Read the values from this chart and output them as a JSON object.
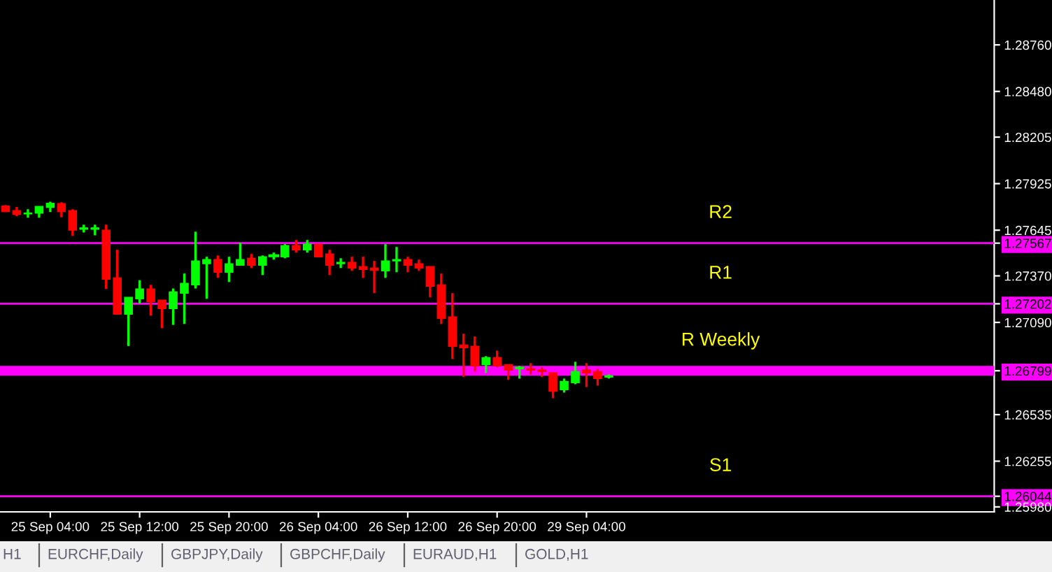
{
  "chart_data": {
    "type": "candlestick",
    "categories": [
      null,
      null,
      null,
      null,
      "25 Sep 04:00",
      null,
      null,
      null,
      null,
      null,
      null,
      null,
      "25 Sep 12:00",
      null,
      null,
      null,
      null,
      null,
      null,
      null,
      "25 Sep 20:00",
      null,
      null,
      null,
      null,
      null,
      null,
      null,
      "26 Sep 04:00",
      null,
      null,
      null,
      null,
      null,
      null,
      null,
      "26 Sep 12:00",
      null,
      null,
      null,
      null,
      null,
      null,
      null,
      "26 Sep 20:00",
      null,
      null,
      null,
      null,
      null,
      null,
      null,
      "29 Sep 04:00",
      null,
      null,
      null,
      null,
      null,
      null,
      null,
      null,
      null,
      null,
      null,
      null,
      null,
      null,
      null,
      null,
      null,
      null,
      null,
      null,
      null,
      null,
      null,
      null,
      null,
      null,
      null,
      null,
      null,
      null,
      null,
      null,
      null,
      null,
      null,
      null
    ],
    "ohlc": [
      [
        1.2779,
        1.27796,
        1.27754,
        1.27757
      ],
      [
        1.27763,
        1.27785,
        1.27729,
        1.2774
      ],
      [
        1.27743,
        1.27771,
        1.2772,
        1.27748
      ],
      [
        1.27748,
        1.27788,
        1.2772,
        1.27788
      ],
      [
        1.27782,
        1.27816,
        1.27754,
        1.27807
      ],
      [
        1.27805,
        1.27813,
        1.27723,
        1.27757
      ],
      [
        1.27763,
        1.27771,
        1.27611,
        1.27645
      ],
      [
        1.27651,
        1.27678,
        1.27631,
        1.27659
      ],
      [
        1.27651,
        1.27678,
        1.27614,
        1.27659
      ],
      [
        1.27645,
        1.27678,
        1.27291,
        1.2735
      ],
      [
        1.27358,
        1.27527,
        1.27139,
        1.27139
      ],
      [
        1.27139,
        1.27241,
        1.26948,
        1.27241
      ],
      [
        1.27232,
        1.27344,
        1.27204,
        1.27291
      ],
      [
        1.27291,
        1.27316,
        1.27131,
        1.27215
      ],
      [
        1.27224,
        1.27224,
        1.27055,
        1.27173
      ],
      [
        1.27173,
        1.27294,
        1.27075,
        1.27274
      ],
      [
        1.27266,
        1.27384,
        1.27081,
        1.27325
      ],
      [
        1.27316,
        1.27636,
        1.27294,
        1.2746
      ],
      [
        1.27443,
        1.27485,
        1.27232,
        1.27468
      ],
      [
        1.27468,
        1.27493,
        1.27358,
        1.27392
      ],
      [
        1.27392,
        1.27485,
        1.27333,
        1.27443
      ],
      [
        1.27434,
        1.27569,
        1.27434,
        1.27468
      ],
      [
        1.27476,
        1.27502,
        1.27417,
        1.27434
      ],
      [
        1.27434,
        1.27493,
        1.27375,
        1.27485
      ],
      [
        1.27491,
        1.2751,
        1.27468,
        1.27493
      ],
      [
        1.27485,
        1.27561,
        1.27476,
        1.27552
      ],
      [
        1.27552,
        1.27586,
        1.2751,
        1.27527
      ],
      [
        1.27527,
        1.27586,
        1.2751,
        1.27561
      ],
      [
        1.27561,
        1.27561,
        1.27485,
        1.27485
      ],
      [
        1.27502,
        1.27527,
        1.27375,
        1.27434
      ],
      [
        1.27443,
        1.27476,
        1.27417,
        1.27451
      ],
      [
        1.27451,
        1.27485,
        1.274,
        1.27417
      ],
      [
        1.27426,
        1.27485,
        1.27358,
        1.27409
      ],
      [
        1.27417,
        1.2746,
        1.27266,
        1.27403
      ],
      [
        1.274,
        1.27561,
        1.27358,
        1.2746
      ],
      [
        1.2746,
        1.27544,
        1.27392,
        1.27468
      ],
      [
        1.27468,
        1.27485,
        1.27392,
        1.27434
      ],
      [
        1.27443,
        1.27468,
        1.274,
        1.27417
      ],
      [
        1.27426,
        1.27426,
        1.27241,
        1.27308
      ],
      [
        1.27316,
        1.27384,
        1.27081,
        1.27114
      ],
      [
        1.27123,
        1.27266,
        1.2687,
        1.26946
      ],
      [
        1.26954,
        1.27022,
        1.26761,
        1.26937
      ],
      [
        1.26946,
        1.27005,
        1.26794,
        1.26828
      ],
      [
        1.26836,
        1.26887,
        1.26786,
        1.26878
      ],
      [
        1.26878,
        1.2692,
        1.2682,
        1.26828
      ],
      [
        1.26836,
        1.26836,
        1.26744,
        1.26803
      ],
      [
        1.26811,
        1.26828,
        1.26752,
        1.2682
      ],
      [
        1.26811,
        1.26845,
        1.26777,
        1.26803
      ],
      [
        1.26803,
        1.2682,
        1.26761,
        1.26794
      ],
      [
        1.26786,
        1.26786,
        1.26634,
        1.26676
      ],
      [
        1.26685,
        1.26752,
        1.26668,
        1.26735
      ],
      [
        1.26727,
        1.26853,
        1.26718,
        1.26794
      ],
      [
        1.26803,
        1.26845,
        1.26701,
        1.26786
      ],
      [
        1.26794,
        1.26811,
        1.2671,
        1.26752
      ],
      [
        1.26761,
        1.26777,
        1.26752,
        1.26769
      ],
      null,
      null,
      null,
      null,
      null,
      null,
      null,
      null,
      null,
      null,
      null,
      null,
      null,
      null,
      null,
      null,
      null,
      null,
      null,
      null,
      null,
      null,
      null,
      null,
      null,
      null,
      null,
      null,
      null,
      null,
      null,
      null,
      null,
      null
    ],
    "colors": [
      "#ff0000",
      "#ff0000",
      "#00ff00",
      "#00ff00",
      "#00ff00",
      "#ff0000",
      "#ff0000",
      "#00ff00",
      "#00ff00",
      "#ff0000",
      "#ff0000",
      "#00ff00",
      "#00ff00",
      "#ff0000",
      "#ff0000",
      "#00ff00",
      "#00ff00",
      "#00ff00",
      "#00ff00",
      "#ff0000",
      "#00ff00",
      "#00ff00",
      "#ff0000",
      "#00ff00",
      "#00ff00",
      "#00ff00",
      "#ff0000",
      "#00ff00",
      "#ff0000",
      "#ff0000",
      "#00ff00",
      "#ff0000",
      "#ff0000",
      "#ff0000",
      "#00ff00",
      "#00ff00",
      "#ff0000",
      "#ff0000",
      "#ff0000",
      "#ff0000",
      "#ff0000",
      "#ff0000",
      "#ff0000",
      "#00ff00",
      "#ff0000",
      "#ff0000",
      "#00ff00",
      "#ff0000",
      "#ff0000",
      "#ff0000",
      "#00ff00",
      "#00ff00",
      "#ff0000",
      "#ff0000",
      "#00ff00",
      null,
      null,
      null,
      null,
      null,
      null,
      null,
      null,
      null,
      null,
      null,
      null,
      null,
      null,
      null,
      null,
      null,
      null,
      null,
      null,
      null,
      null,
      null,
      null,
      null,
      null,
      null,
      null,
      null,
      null,
      null,
      null,
      null,
      null
    ],
    "ylim": [
      1.2595,
      1.2903
    ],
    "yticks": [
      {
        "value": 1.2876,
        "label": "1.28760"
      },
      {
        "value": 1.2848,
        "label": "1.28480"
      },
      {
        "value": 1.28205,
        "label": "1.28205"
      },
      {
        "value": 1.27925,
        "label": "1.27925"
      },
      {
        "value": 1.27645,
        "label": "1.27645"
      },
      {
        "value": 1.27567,
        "label": "1.27567"
      },
      {
        "value": 1.2737,
        "label": "1.27370"
      },
      {
        "value": 1.27202,
        "label": "1.27202"
      },
      {
        "value": 1.2709,
        "label": "1.27090"
      },
      {
        "value": 1.26799,
        "label": "1.26799"
      },
      {
        "value": 1.26535,
        "label": "1.26535"
      },
      {
        "value": 1.26255,
        "label": "1.26255"
      },
      {
        "value": 1.26044,
        "label": "1.26044"
      },
      {
        "value": 1.2598,
        "label": "1.25980"
      }
    ],
    "ref_lines": [
      {
        "axis": "y",
        "value": 1.27567,
        "label": "R2",
        "color": "#ff00ff"
      },
      {
        "axis": "y",
        "value": 1.27202,
        "label": "R1",
        "color": "#ff00ff"
      },
      {
        "axis": "y",
        "value": 1.26799,
        "label": "R Weekly",
        "color": "#ff00ff"
      },
      {
        "axis": "y",
        "value": 1.26044,
        "label": "S1",
        "color": "#ff00ff"
      }
    ],
    "bands": [
      {
        "axis": "y",
        "from": 1.26769,
        "to": 1.26828,
        "color": "#ff00ff"
      }
    ],
    "annotations": [
      "H1",
      "EURCHF,Daily",
      "GBPJPY,Daily",
      "GBPCHF,Daily",
      "EURAUD,H1",
      "GOLD,H1"
    ],
    "grid": false,
    "legend": false
  }
}
